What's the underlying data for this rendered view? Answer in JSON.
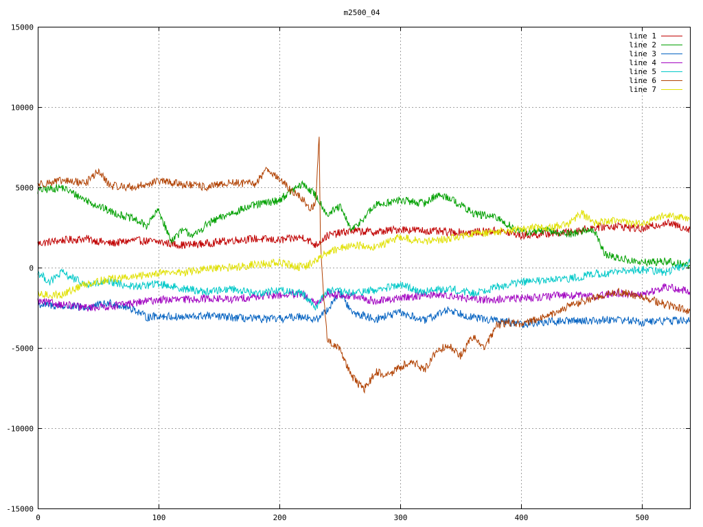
{
  "chart_data": {
    "type": "line",
    "title": "m2500_04",
    "xlabel": "",
    "ylabel": "",
    "xlim": [
      0,
      540
    ],
    "ylim": [
      -15000,
      15000
    ],
    "x_ticks": [
      0,
      100,
      200,
      300,
      400,
      500
    ],
    "y_ticks": [
      -15000,
      -10000,
      -5000,
      0,
      5000,
      10000,
      15000
    ],
    "grid": true,
    "legend_position": "top-right",
    "series": [
      {
        "name": "line 1",
        "color": "#c00000",
        "x": [
          0,
          20,
          40,
          60,
          80,
          100,
          120,
          140,
          160,
          180,
          200,
          220,
          230,
          240,
          260,
          280,
          300,
          320,
          340,
          360,
          380,
          400,
          420,
          440,
          460,
          480,
          500,
          520,
          540
        ],
        "y": [
          1500,
          1700,
          1800,
          1500,
          1700,
          1600,
          1400,
          1500,
          1700,
          1800,
          1700,
          1900,
          1400,
          2000,
          2300,
          2200,
          2400,
          2300,
          2200,
          2200,
          2300,
          2000,
          2100,
          2200,
          2500,
          2600,
          2400,
          2800,
          2400
        ]
      },
      {
        "name": "line 2",
        "color": "#00a000",
        "x": [
          0,
          20,
          40,
          60,
          80,
          90,
          100,
          110,
          120,
          130,
          140,
          160,
          180,
          200,
          210,
          220,
          230,
          240,
          250,
          260,
          280,
          300,
          320,
          330,
          340,
          360,
          380,
          400,
          420,
          440,
          460,
          470,
          480,
          500,
          520,
          540
        ],
        "y": [
          4800,
          5000,
          4200,
          3500,
          3000,
          2600,
          3600,
          1700,
          2300,
          2000,
          2700,
          3400,
          3900,
          4200,
          4800,
          5200,
          4500,
          3300,
          3800,
          2300,
          3900,
          4200,
          4000,
          4500,
          4400,
          3400,
          3100,
          2200,
          2300,
          2100,
          2400,
          800,
          600,
          300,
          400,
          100
        ]
      },
      {
        "name": "line 3",
        "color": "#0060c0",
        "x": [
          0,
          20,
          40,
          60,
          80,
          90,
          100,
          120,
          140,
          160,
          180,
          200,
          220,
          230,
          240,
          250,
          260,
          280,
          300,
          320,
          340,
          360,
          380,
          400,
          420,
          440,
          460,
          480,
          500,
          520,
          540
        ],
        "y": [
          -2300,
          -2400,
          -2500,
          -2200,
          -2600,
          -3100,
          -3000,
          -3100,
          -3000,
          -3100,
          -3200,
          -3200,
          -3000,
          -3300,
          -2600,
          -1500,
          -2800,
          -3200,
          -2800,
          -3300,
          -2600,
          -3100,
          -3300,
          -3500,
          -3400,
          -3300,
          -3300,
          -3200,
          -3400,
          -3300,
          -3300
        ]
      },
      {
        "name": "line 4",
        "color": "#a000c0",
        "x": [
          0,
          20,
          40,
          60,
          80,
          100,
          120,
          140,
          160,
          180,
          200,
          220,
          230,
          240,
          260,
          280,
          300,
          320,
          340,
          360,
          380,
          400,
          420,
          440,
          460,
          480,
          500,
          520,
          540
        ],
        "y": [
          -2100,
          -2300,
          -2500,
          -2400,
          -2200,
          -2000,
          -2000,
          -1900,
          -2000,
          -1800,
          -1700,
          -1700,
          -2300,
          -1600,
          -1800,
          -2100,
          -1900,
          -1700,
          -1700,
          -2000,
          -2000,
          -1900,
          -1800,
          -1700,
          -1800,
          -1600,
          -1700,
          -1200,
          -1500
        ]
      },
      {
        "name": "line 5",
        "color": "#00c8c8",
        "x": [
          0,
          10,
          20,
          40,
          60,
          80,
          100,
          120,
          140,
          160,
          180,
          200,
          220,
          230,
          240,
          260,
          280,
          300,
          320,
          340,
          360,
          380,
          400,
          420,
          440,
          460,
          480,
          500,
          520,
          540
        ],
        "y": [
          -300,
          -900,
          -300,
          -1100,
          -900,
          -1200,
          -1000,
          -1300,
          -1500,
          -1300,
          -1600,
          -1400,
          -1600,
          -2500,
          -1400,
          -1600,
          -1400,
          -1100,
          -1500,
          -1300,
          -1600,
          -1200,
          -900,
          -800,
          -700,
          -400,
          -300,
          -100,
          -300,
          300
        ]
      },
      {
        "name": "line 6",
        "color": "#b04000",
        "x": [
          0,
          20,
          40,
          50,
          60,
          80,
          100,
          120,
          140,
          160,
          180,
          190,
          200,
          210,
          220,
          225,
          230,
          233,
          234,
          236,
          240,
          250,
          260,
          270,
          280,
          290,
          300,
          310,
          320,
          330,
          340,
          350,
          360,
          370,
          380,
          390,
          400,
          420,
          440,
          460,
          480,
          500,
          520,
          540
        ],
        "y": [
          5200,
          5400,
          5300,
          6000,
          5100,
          5000,
          5400,
          5200,
          5000,
          5300,
          5200,
          6200,
          5500,
          4800,
          4200,
          3700,
          3900,
          8200,
          2000,
          -1000,
          -4600,
          -5000,
          -6800,
          -7600,
          -6500,
          -6700,
          -6200,
          -5800,
          -6400,
          -5200,
          -4800,
          -5500,
          -4300,
          -5000,
          -3600,
          -3400,
          -3500,
          -3100,
          -2400,
          -1900,
          -1500,
          -1800,
          -2300,
          -2700
        ]
      },
      {
        "name": "line 7",
        "color": "#e0e000",
        "x": [
          0,
          20,
          40,
          60,
          80,
          100,
          120,
          140,
          160,
          180,
          200,
          220,
          230,
          240,
          260,
          280,
          300,
          320,
          340,
          360,
          380,
          400,
          420,
          440,
          450,
          460,
          480,
          500,
          520,
          540
        ],
        "y": [
          -1700,
          -1700,
          -1000,
          -700,
          -600,
          -300,
          -300,
          -100,
          0,
          200,
          300,
          0,
          400,
          1000,
          1400,
          1300,
          1900,
          1600,
          1800,
          2100,
          2200,
          2400,
          2500,
          2700,
          3400,
          2800,
          2900,
          2700,
          3300,
          3000
        ]
      }
    ]
  }
}
